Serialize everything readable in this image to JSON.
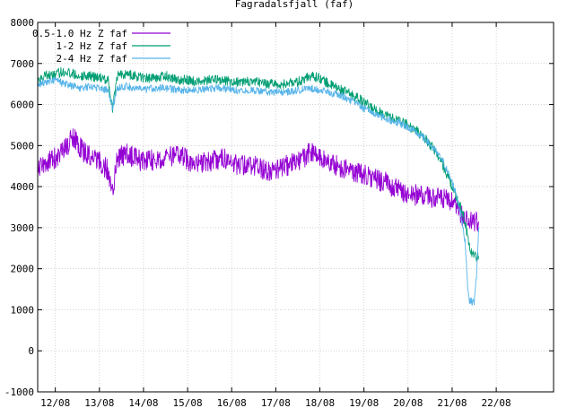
{
  "chart_data": {
    "type": "line",
    "title": "Fagradalsfjall (faf)",
    "xlabel": "",
    "ylabel": "",
    "ylim": [
      -1000,
      8000
    ],
    "y_ticks": [
      -1000,
      0,
      1000,
      2000,
      3000,
      4000,
      5000,
      6000,
      7000,
      8000
    ],
    "x_ticks": [
      "12/08",
      "13/08",
      "14/08",
      "15/08",
      "16/08",
      "17/08",
      "18/08",
      "19/08",
      "20/08",
      "21/08",
      "22/08"
    ],
    "x_tick_positions": [
      12,
      13,
      14,
      15,
      16,
      17,
      18,
      19,
      20,
      21,
      22
    ],
    "xlim": [
      11.6,
      23.3
    ],
    "grid": true,
    "legend_position": "top-left",
    "series": [
      {
        "name": "0.5-1.0 Hz Z faf",
        "color": "#9400d3",
        "x": [
          11.6,
          11.8,
          12.0,
          12.2,
          12.4,
          12.6,
          12.8,
          13.0,
          13.2,
          13.3,
          13.4,
          13.6,
          13.8,
          14.0,
          14.2,
          14.5,
          14.8,
          15.0,
          15.2,
          15.5,
          15.8,
          16.0,
          16.2,
          16.5,
          16.8,
          17.0,
          17.2,
          17.5,
          17.8,
          18.0,
          18.2,
          18.5,
          18.8,
          19.0,
          19.2,
          19.5,
          19.8,
          20.0,
          20.2,
          20.5,
          20.8,
          21.0,
          21.2,
          21.3,
          21.4,
          21.5,
          21.6
        ],
        "values": [
          4500,
          4600,
          4700,
          4900,
          5200,
          4900,
          4700,
          4600,
          4400,
          3800,
          4700,
          4800,
          4700,
          4600,
          4650,
          4700,
          4750,
          4650,
          4550,
          4600,
          4700,
          4550,
          4550,
          4500,
          4400,
          4400,
          4500,
          4600,
          4850,
          4700,
          4600,
          4450,
          4350,
          4300,
          4200,
          4100,
          3900,
          3800,
          3800,
          3750,
          3700,
          3600,
          3300,
          3200,
          3150,
          3100,
          3150
        ]
      },
      {
        "name": "1-2 Hz Z faf",
        "color": "#009e73",
        "x": [
          11.6,
          11.8,
          12.0,
          12.2,
          12.4,
          12.6,
          12.8,
          13.0,
          13.2,
          13.3,
          13.4,
          13.6,
          13.8,
          14.0,
          14.2,
          14.5,
          14.8,
          15.0,
          15.2,
          15.5,
          15.8,
          16.0,
          16.2,
          16.5,
          16.8,
          17.0,
          17.2,
          17.5,
          17.8,
          18.0,
          18.2,
          18.5,
          18.8,
          19.0,
          19.2,
          19.5,
          19.8,
          20.0,
          20.2,
          20.4,
          20.6,
          20.8,
          21.0,
          21.1,
          21.2,
          21.3,
          21.4,
          21.5,
          21.6
        ],
        "values": [
          6600,
          6700,
          6750,
          6800,
          6750,
          6700,
          6700,
          6650,
          6600,
          5900,
          6700,
          6750,
          6700,
          6650,
          6650,
          6700,
          6600,
          6600,
          6550,
          6600,
          6600,
          6550,
          6550,
          6550,
          6500,
          6500,
          6500,
          6550,
          6700,
          6650,
          6500,
          6350,
          6200,
          6050,
          5900,
          5750,
          5600,
          5500,
          5350,
          5150,
          4900,
          4500,
          4000,
          3700,
          3500,
          3100,
          2500,
          2300,
          2300
        ]
      },
      {
        "name": "2-4 Hz Z faf",
        "color": "#56b4e9",
        "x": [
          11.6,
          11.8,
          12.0,
          12.2,
          12.4,
          12.6,
          12.8,
          13.0,
          13.2,
          13.3,
          13.4,
          13.6,
          13.8,
          14.0,
          14.2,
          14.5,
          14.8,
          15.0,
          15.2,
          15.5,
          15.8,
          16.0,
          16.2,
          16.5,
          16.8,
          17.0,
          17.2,
          17.5,
          17.8,
          18.0,
          18.2,
          18.5,
          18.8,
          19.0,
          19.2,
          19.5,
          19.8,
          20.0,
          20.2,
          20.4,
          20.6,
          20.8,
          21.0,
          21.1,
          21.2,
          21.3,
          21.35,
          21.4,
          21.5,
          21.55,
          21.6
        ],
        "values": [
          6500,
          6550,
          6600,
          6500,
          6450,
          6400,
          6450,
          6400,
          6350,
          5900,
          6400,
          6450,
          6400,
          6350,
          6400,
          6400,
          6350,
          6350,
          6350,
          6400,
          6400,
          6350,
          6350,
          6350,
          6300,
          6300,
          6300,
          6350,
          6400,
          6350,
          6300,
          6200,
          6050,
          5900,
          5800,
          5650,
          5550,
          5450,
          5300,
          5150,
          4900,
          4600,
          4100,
          3800,
          3300,
          2600,
          1600,
          1200,
          1200,
          1800,
          3000
        ]
      }
    ]
  }
}
